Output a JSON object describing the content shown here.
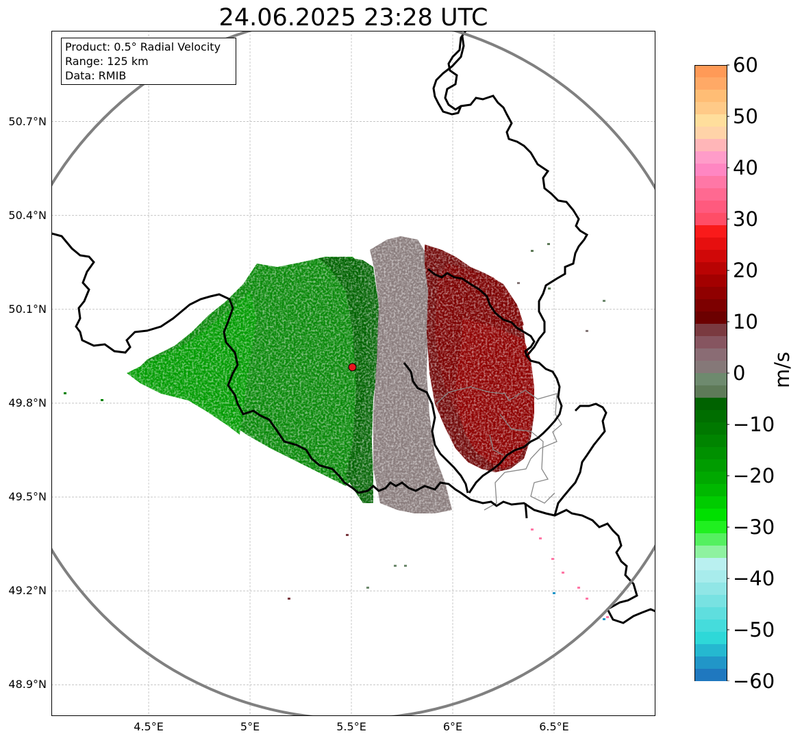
{
  "title": "24.06.2025 23:28 UTC",
  "info": {
    "product": "Product: 0.5° Radial Velocity",
    "range": "Range: 125 km",
    "source": "Data: RMIB"
  },
  "map": {
    "lon_range": [
      4.02,
      7.0
    ],
    "lat_range": [
      48.8,
      50.99
    ],
    "lon_ticks": [
      {
        "value": 4.5,
        "label": "4.5°E"
      },
      {
        "value": 5.0,
        "label": "5°E"
      },
      {
        "value": 5.5,
        "label": "5.5°E"
      },
      {
        "value": 6.0,
        "label": "6°E"
      },
      {
        "value": 6.5,
        "label": "6.5°E"
      }
    ],
    "lat_ticks": [
      {
        "value": 50.7,
        "label": "50.7°N"
      },
      {
        "value": 50.4,
        "label": "50.4°N"
      },
      {
        "value": 50.1,
        "label": "50.1°N"
      },
      {
        "value": 49.8,
        "label": "49.8°N"
      },
      {
        "value": 49.5,
        "label": "49.5°N"
      },
      {
        "value": 49.2,
        "label": "49.2°N"
      },
      {
        "value": 48.9,
        "label": "48.9°N"
      }
    ],
    "radar_site": {
      "lon": 5.505,
      "lat": 49.915
    },
    "range_ring_km": 125,
    "grid": true
  },
  "colorbar": {
    "label": "m/s",
    "min": -60,
    "max": 60,
    "ticks": [
      {
        "value": 60,
        "label": "60"
      },
      {
        "value": 50,
        "label": "50"
      },
      {
        "value": 40,
        "label": "40"
      },
      {
        "value": 30,
        "label": "30"
      },
      {
        "value": 20,
        "label": "20"
      },
      {
        "value": 10,
        "label": "10"
      },
      {
        "value": 0,
        "label": "0"
      },
      {
        "value": -10,
        "label": "−10"
      },
      {
        "value": -20,
        "label": "−20"
      },
      {
        "value": -30,
        "label": "−30"
      },
      {
        "value": -40,
        "label": "−40"
      },
      {
        "value": -50,
        "label": "−50"
      },
      {
        "value": -60,
        "label": "−60"
      }
    ],
    "colors_top_to_bottom": [
      "#ff9a57",
      "#ffa966",
      "#ffbd75",
      "#ffca88",
      "#ffde9c",
      "#ffd3a8",
      "#ffb6b8",
      "#ff9cc9",
      "#ff86c2",
      "#ff77a6",
      "#ff6991",
      "#ff5a7e",
      "#ff4d67",
      "#f91a1a",
      "#e60f0f",
      "#d00808",
      "#b90303",
      "#a30000",
      "#900000",
      "#7d0000",
      "#6c0000",
      "#7a3a40",
      "#865560",
      "#8a6c74",
      "#857878",
      "#6e8a6e",
      "#5e7a58",
      "#006200",
      "#006e00",
      "#007800",
      "#008400",
      "#009000",
      "#009c00",
      "#00a800",
      "#00b800",
      "#00cc00",
      "#00e000",
      "#20f020",
      "#55f060",
      "#8ef2a0",
      "#b9f0f0",
      "#a8ecec",
      "#90e6e6",
      "#78e2e2",
      "#5fdede",
      "#45dcdc",
      "#2ed8d8",
      "#25b8d0",
      "#2196c8",
      "#1f78bf"
    ]
  }
}
